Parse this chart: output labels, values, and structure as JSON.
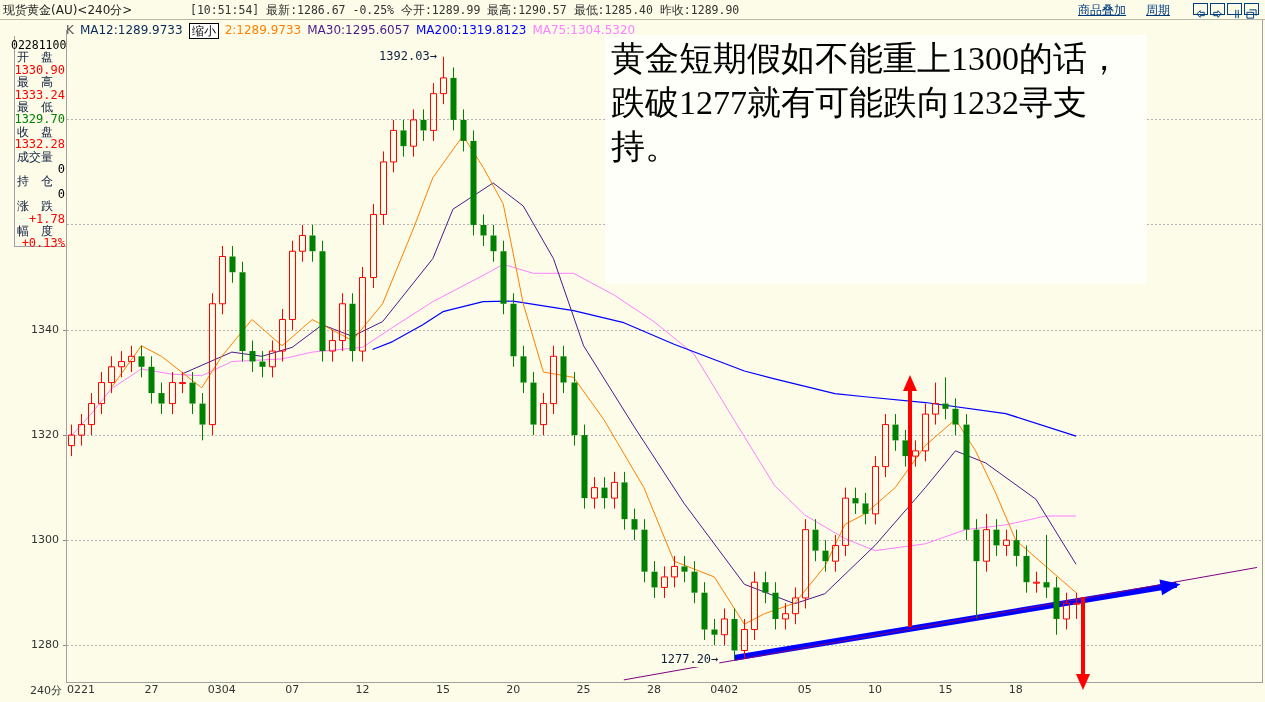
{
  "chart_data": {
    "type": "candlestick",
    "title": "现货黄金(AU)<240分>",
    "subtitle": "[10:51:54] 最新:1286.67 -0.25% 今开:1289.99 最高:1290.57 最低:1285.40 昨收:1289.90",
    "xlabel": "240分",
    "categories": [
      null,
      "0221",
      null,
      null,
      null,
      null,
      null,
      null,
      "27",
      null,
      null,
      null,
      null,
      null,
      null,
      "0304",
      null,
      null,
      null,
      null,
      null,
      null,
      "07",
      null,
      null,
      null,
      null,
      null,
      null,
      "12",
      null,
      null,
      null,
      null,
      null,
      null,
      null,
      "15",
      null,
      null,
      null,
      null,
      null,
      null,
      "20",
      null,
      null,
      null,
      null,
      null,
      null,
      "25",
      null,
      null,
      null,
      null,
      null,
      null,
      "28",
      null,
      null,
      null,
      null,
      null,
      null,
      "0402",
      null,
      null,
      null,
      null,
      null,
      null,
      null,
      "05",
      null,
      null,
      null,
      null,
      null,
      null,
      "10",
      null,
      null,
      null,
      null,
      null,
      null,
      "15",
      null,
      null,
      null,
      null,
      null,
      null,
      "18",
      null,
      null,
      null,
      null,
      null,
      null,
      null,
      null,
      null,
      null,
      null,
      null,
      null,
      null,
      null,
      null,
      null,
      null,
      null,
      null,
      null,
      null,
      null,
      null
    ],
    "ohlc": [
      [
        1318,
        1322,
        1316,
        1320
      ],
      [
        1320,
        1324,
        1318,
        1322
      ],
      [
        1322,
        1328,
        1320,
        1326
      ],
      [
        1326,
        1332,
        1324,
        1330
      ],
      [
        1330,
        1335,
        1328,
        1333
      ],
      [
        1333,
        1336,
        1331,
        1334
      ],
      [
        1334,
        1337,
        1332,
        1335
      ],
      [
        1335,
        1337,
        1331,
        1333
      ],
      [
        1333,
        1335,
        1326,
        1328
      ],
      [
        1328,
        1330,
        1324,
        1326
      ],
      [
        1326,
        1332,
        1324,
        1330
      ],
      [
        1330,
        1332,
        1328,
        1330
      ],
      [
        1330,
        1332,
        1324,
        1326
      ],
      [
        1326,
        1328,
        1319,
        1322
      ],
      [
        1322,
        1347,
        1320,
        1345
      ],
      [
        1345,
        1356,
        1343,
        1354
      ],
      [
        1354,
        1356,
        1349,
        1351
      ],
      [
        1351,
        1353,
        1334,
        1336
      ],
      [
        1336,
        1338,
        1332,
        1334
      ],
      [
        1334,
        1336,
        1331,
        1333
      ],
      [
        1333,
        1338,
        1331,
        1336
      ],
      [
        1336,
        1344,
        1334,
        1342
      ],
      [
        1342,
        1357,
        1340,
        1355
      ],
      [
        1355,
        1360,
        1353,
        1358
      ],
      [
        1358,
        1360,
        1353,
        1355
      ],
      [
        1355,
        1357,
        1334,
        1336
      ],
      [
        1336,
        1340,
        1334,
        1338
      ],
      [
        1338,
        1347,
        1336,
        1345
      ],
      [
        1345,
        1347,
        1334,
        1336
      ],
      [
        1336,
        1352,
        1334,
        1350
      ],
      [
        1350,
        1364,
        1348,
        1362
      ],
      [
        1362,
        1374,
        1360,
        1372
      ],
      [
        1372,
        1380,
        1370,
        1378
      ],
      [
        1378,
        1380,
        1373,
        1375
      ],
      [
        1375,
        1382,
        1373,
        1380
      ],
      [
        1380,
        1382,
        1376,
        1378
      ],
      [
        1378,
        1387,
        1376,
        1385
      ],
      [
        1385,
        1392.03,
        1383,
        1388
      ],
      [
        1388,
        1390,
        1378,
        1380
      ],
      [
        1380,
        1382,
        1374,
        1376
      ],
      [
        1376,
        1378,
        1358,
        1360
      ],
      [
        1360,
        1362,
        1356,
        1358
      ],
      [
        1358,
        1360,
        1353,
        1355
      ],
      [
        1355,
        1357,
        1343,
        1345
      ],
      [
        1345,
        1347,
        1333,
        1335
      ],
      [
        1335,
        1337,
        1328,
        1330
      ],
      [
        1330,
        1332,
        1320,
        1322
      ],
      [
        1322,
        1328,
        1320,
        1326
      ],
      [
        1326,
        1337,
        1324,
        1335
      ],
      [
        1335,
        1337,
        1328,
        1330
      ],
      [
        1330,
        1332,
        1318,
        1320
      ],
      [
        1320,
        1322,
        1306,
        1308
      ],
      [
        1308,
        1312,
        1306,
        1310
      ],
      [
        1310,
        1312,
        1306,
        1308
      ],
      [
        1308,
        1313,
        1306,
        1311
      ],
      [
        1311,
        1313,
        1302,
        1304
      ],
      [
        1304,
        1306,
        1300,
        1302
      ],
      [
        1302,
        1304,
        1292,
        1294
      ],
      [
        1294,
        1296,
        1289,
        1291
      ],
      [
        1291,
        1295,
        1289,
        1293
      ],
      [
        1293,
        1297,
        1291,
        1295
      ],
      [
        1295,
        1297,
        1292,
        1294
      ],
      [
        1294,
        1296,
        1288,
        1290
      ],
      [
        1290,
        1292,
        1281,
        1283
      ],
      [
        1283,
        1285,
        1280,
        1282
      ],
      [
        1282,
        1287,
        1280,
        1285
      ],
      [
        1285,
        1287,
        1277.2,
        1279
      ],
      [
        1279,
        1285,
        1277.5,
        1283
      ],
      [
        1283,
        1294,
        1281,
        1292
      ],
      [
        1292,
        1294,
        1288,
        1290
      ],
      [
        1290,
        1292,
        1283,
        1285
      ],
      [
        1285,
        1288,
        1283,
        1286
      ],
      [
        1286,
        1291,
        1284,
        1289
      ],
      [
        1289,
        1304,
        1287,
        1302
      ],
      [
        1302,
        1304,
        1296,
        1298
      ],
      [
        1298,
        1300,
        1294,
        1296
      ],
      [
        1296,
        1301,
        1294,
        1299
      ],
      [
        1299,
        1310,
        1297,
        1308
      ],
      [
        1308,
        1310,
        1305,
        1307
      ],
      [
        1307,
        1309,
        1303,
        1305
      ],
      [
        1305,
        1316,
        1303,
        1314
      ],
      [
        1314,
        1324,
        1312,
        1322
      ],
      [
        1322,
        1324,
        1317,
        1319
      ],
      [
        1319,
        1321,
        1314,
        1316
      ],
      [
        1316,
        1319,
        1314,
        1317
      ],
      [
        1317,
        1326,
        1315,
        1324
      ],
      [
        1324,
        1330,
        1322,
        1326
      ],
      [
        1326,
        1331,
        1323,
        1325
      ],
      [
        1325,
        1327,
        1320,
        1322
      ],
      [
        1322,
        1324,
        1300,
        1302
      ],
      [
        1302,
        1304,
        1285,
        1296
      ],
      [
        1296,
        1305,
        1294,
        1302
      ],
      [
        1302,
        1304,
        1297,
        1299
      ],
      [
        1299,
        1302,
        1297,
        1300
      ],
      [
        1300,
        1302,
        1295,
        1297
      ],
      [
        1297,
        1299,
        1290,
        1292
      ],
      [
        1292,
        1294,
        1290,
        1292
      ],
      [
        1292,
        1301,
        1289,
        1291
      ],
      [
        1291,
        1293,
        1282,
        1285
      ],
      [
        1285,
        1290,
        1283,
        1288
      ],
      [
        1288,
        1290,
        1285,
        1288
      ],
      null,
      null,
      null,
      null,
      null,
      null,
      null,
      null,
      null,
      null,
      null,
      null,
      null,
      null,
      null,
      null,
      null,
      null
    ],
    "series": [
      {
        "type": "line",
        "name": "2:1289.9733",
        "color": "#ff8000",
        "values": [
          null,
          null,
          null,
          null,
          1329,
          null,
          null,
          1337,
          null,
          1335,
          null,
          null,
          null,
          1329,
          null,
          1335,
          null,
          null,
          1342,
          null,
          null,
          1337,
          null,
          null,
          1342,
          null,
          null,
          null,
          1338,
          null,
          null,
          1345,
          null,
          null,
          1359,
          null,
          1369,
          null,
          null,
          1377,
          null,
          1371,
          null,
          1364,
          null,
          1345,
          null,
          1332,
          null,
          null,
          1331,
          null,
          null,
          1323,
          null,
          null,
          null,
          1310,
          null,
          null,
          1296,
          null,
          null,
          null,
          1293,
          null,
          null,
          1284,
          null,
          1286,
          null,
          null,
          1288,
          null,
          null,
          1295,
          null,
          1303,
          null,
          1305,
          null,
          null,
          1310,
          null,
          null,
          1318,
          null,
          null,
          1323,
          null,
          1317,
          null,
          1309,
          null,
          1300,
          null,
          null,
          1295,
          null,
          null,
          1290,
          null,
          null,
          null,
          null,
          null,
          null,
          null,
          null,
          null,
          null,
          null,
          null,
          null,
          null,
          null,
          null,
          null,
          null
        ]
      },
      {
        "type": "line",
        "name": "MA30:1295.6057",
        "color": "#4b1a8c",
        "values": [
          null,
          null,
          null,
          null,
          null,
          null,
          null,
          null,
          null,
          null,
          null,
          1331.6,
          null,
          null,
          null,
          null,
          1335.8,
          null,
          null,
          1335,
          null,
          null,
          1336.7,
          null,
          null,
          1341,
          null,
          null,
          1338.8,
          null,
          null,
          1341.6,
          null,
          null,
          null,
          null,
          1353.6,
          null,
          1363,
          null,
          null,
          null,
          1368,
          null,
          null,
          1363.6,
          null,
          null,
          1353.6,
          null,
          null,
          1337,
          null,
          null,
          null,
          null,
          1321.7,
          null,
          null,
          null,
          null,
          1307,
          null,
          null,
          null,
          null,
          null,
          1291.6,
          null,
          null,
          null,
          null,
          1287.9,
          null,
          null,
          1289.8,
          null,
          null,
          null,
          null,
          1299,
          null,
          null,
          null,
          null,
          1310,
          null,
          null,
          1317,
          null,
          null,
          1314.7,
          null,
          null,
          null,
          null,
          1307.8,
          null,
          null,
          null,
          1295.4,
          null,
          null,
          null,
          null,
          null,
          null,
          null,
          null,
          null,
          null,
          null,
          null,
          null,
          null,
          null,
          null,
          null,
          null
        ]
      },
      {
        "type": "line",
        "name": "MA200:1319.8123",
        "color": "#0000ff",
        "values": [
          null,
          null,
          null,
          null,
          null,
          null,
          null,
          null,
          null,
          null,
          null,
          null,
          null,
          null,
          null,
          null,
          null,
          null,
          null,
          null,
          null,
          null,
          null,
          null,
          null,
          null,
          null,
          null,
          null,
          null,
          1336.3,
          null,
          1337.8,
          null,
          null,
          1341,
          null,
          1343.5,
          null,
          null,
          null,
          1345.4,
          null,
          null,
          1345.5,
          null,
          null,
          null,
          null,
          null,
          1343.7,
          null,
          null,
          null,
          null,
          1341.4,
          null,
          null,
          null,
          null,
          1337.3,
          null,
          null,
          null,
          null,
          null,
          null,
          1332.2,
          null,
          null,
          1330.7,
          null,
          null,
          null,
          null,
          null,
          1327.9,
          null,
          null,
          1327.3,
          null,
          null,
          null,
          null,
          null,
          1326.2,
          null,
          null,
          null,
          null,
          null,
          null,
          null,
          1324.1,
          null,
          null,
          null,
          null,
          null,
          null,
          1319.8,
          null,
          null,
          null,
          null,
          null,
          null,
          null,
          null,
          null,
          null,
          null,
          null,
          null,
          null,
          null,
          null,
          null,
          null
        ]
      },
      {
        "type": "line",
        "name": "MA75:1304.5320",
        "color": "#ff80ff",
        "values": [
          1319.8,
          null,
          1324,
          null,
          1328.8,
          null,
          null,
          1332.6,
          null,
          null,
          1331.6,
          null,
          null,
          1331.3,
          null,
          null,
          1334,
          null,
          null,
          null,
          null,
          1334.5,
          null,
          null,
          1335.8,
          null,
          null,
          null,
          null,
          1336.7,
          null,
          null,
          1340.5,
          null,
          null,
          null,
          1345.4,
          null,
          null,
          null,
          null,
          1350.4,
          null,
          1352.5,
          null,
          null,
          1350.8,
          null,
          null,
          null,
          1350.8,
          null,
          null,
          null,
          1346.7,
          null,
          null,
          null,
          1341.6,
          null,
          null,
          null,
          1335.4,
          null,
          null,
          null,
          1322.8,
          null,
          null,
          null,
          1310.4,
          null,
          null,
          1304.8,
          null,
          null,
          null,
          1300.3,
          null,
          null,
          1298,
          null,
          null,
          null,
          null,
          1299.3,
          null,
          null,
          null,
          1302,
          null,
          null,
          null,
          1302.9,
          null,
          null,
          null,
          1304.6,
          null,
          null,
          1304.6,
          null,
          null,
          null,
          null,
          null,
          null,
          null,
          null,
          null,
          null,
          null,
          null,
          null,
          null,
          null,
          null,
          null,
          null
        ]
      },
      {
        "type": "line",
        "color": "#800080",
        "values": [
          null,
          null,
          null,
          null,
          null,
          null,
          null,
          null,
          null,
          null,
          null,
          null,
          null,
          null,
          null,
          null,
          null,
          null,
          null,
          null,
          null,
          null,
          null,
          null,
          null,
          null,
          null,
          null,
          null,
          null,
          null,
          null,
          null,
          null,
          null,
          null,
          null,
          null,
          null,
          null,
          null,
          null,
          null,
          null,
          null,
          null,
          null,
          null,
          null,
          null,
          null,
          null,
          null,
          null,
          null,
          1273.4,
          null,
          null,
          null,
          null,
          null,
          null,
          null,
          null,
          null,
          null,
          null,
          null,
          null,
          null,
          null,
          null,
          null,
          null,
          null,
          null,
          null,
          null,
          null,
          null,
          null,
          null,
          null,
          null,
          null,
          null,
          null,
          null,
          null,
          null,
          null,
          null,
          null,
          null,
          null,
          null,
          null,
          null,
          null,
          null,
          null,
          null,
          null,
          null,
          null,
          null,
          null,
          null,
          null,
          null,
          null,
          null,
          null,
          null,
          null,
          null,
          null,
          null,
          1294.8
        ]
      },
      {
        "type": "line",
        "color": "#0000ff",
        "values": [
          null,
          null,
          null,
          null,
          null,
          null,
          null,
          null,
          null,
          null,
          null,
          null,
          null,
          null,
          null,
          null,
          null,
          null,
          null,
          null,
          null,
          null,
          null,
          null,
          null,
          null,
          null,
          null,
          null,
          null,
          null,
          null,
          null,
          null,
          null,
          null,
          null,
          null,
          null,
          null,
          null,
          null,
          null,
          null,
          null,
          null,
          null,
          null,
          null,
          null,
          null,
          null,
          null,
          null,
          null,
          null,
          null,
          null,
          null,
          null,
          null,
          null,
          null,
          null,
          null,
          null,
          1277.6,
          null,
          null,
          null,
          null,
          null,
          null,
          null,
          null,
          null,
          null,
          null,
          null,
          null,
          null,
          null,
          null,
          null,
          null,
          null,
          null,
          null,
          null,
          null,
          null,
          null,
          null,
          null,
          null,
          null,
          null,
          null,
          null,
          null,
          null,
          null,
          null,
          null,
          null,
          null,
          null,
          null,
          null,
          null,
          1291.5,
          null,
          null,
          null,
          null,
          null,
          null,
          null,
          null
        ]
      }
    ],
    "ylim": [
      1273,
      1397
    ],
    "yticks": [
      1280,
      1300,
      1320,
      1340,
      {
        "value": 1360,
        "label": null
      },
      {
        "value": 1380,
        "label": null
      }
    ],
    "grid": "y",
    "legend": "top left",
    "annotations": [
      "K",
      "MA12:1289.9733",
      "缩小",
      "02281100",
      "开　盘",
      "1330.90",
      "最　高",
      "1333.24",
      "最　低",
      "1329.70",
      "收　盘",
      "1332.28",
      "成交量",
      "0",
      "持　仓",
      "0",
      "涨　跌",
      "+1.78",
      "幅　度",
      "+0.13%",
      "商品叠加",
      "周期",
      "黄金短期假如不能重上1300的话，跌破1277就有可能跌向1232寻支持。",
      {
        "text": "1392.03→",
        "x": "15",
        "y": 1392.03
      },
      {
        "text": "1277.20→",
        "x": "0402",
        "y": 1277.2
      }
    ]
  }
}
